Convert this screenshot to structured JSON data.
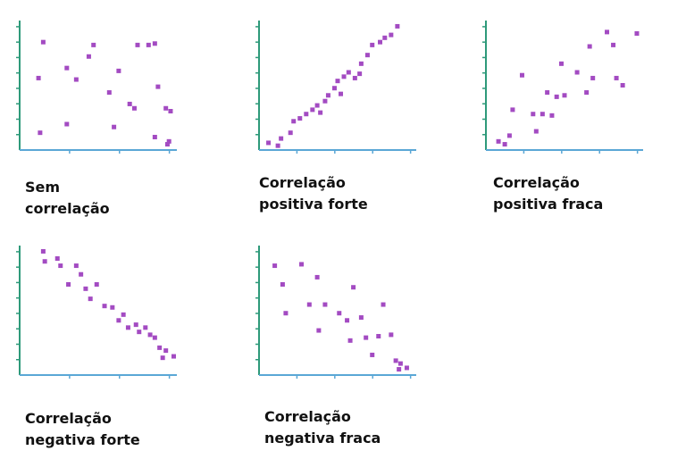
{
  "colors": {
    "y_axis": "#2e9a7a",
    "x_axis": "#5aa7d6",
    "point": "#a34bc2",
    "text": "#111111"
  },
  "chart_data": [
    {
      "type": "scatter",
      "caption": [
        "Sem",
        "correlação"
      ],
      "xlim": [
        0,
        10
      ],
      "ylim": [
        0,
        9
      ],
      "x_ticks": 3,
      "y_ticks": 8,
      "points": [
        [
          1.5,
          7.5
        ],
        [
          1.2,
          5.0
        ],
        [
          3.0,
          5.7
        ],
        [
          3.6,
          4.9
        ],
        [
          4.4,
          6.5
        ],
        [
          4.7,
          7.3
        ],
        [
          5.7,
          4.0
        ],
        [
          6.0,
          1.6
        ],
        [
          6.3,
          5.5
        ],
        [
          7.3,
          2.9
        ],
        [
          7.0,
          3.2
        ],
        [
          7.5,
          7.3
        ],
        [
          8.2,
          7.3
        ],
        [
          8.6,
          7.4
        ],
        [
          8.8,
          4.4
        ],
        [
          8.6,
          0.9
        ],
        [
          9.4,
          0.4
        ],
        [
          9.3,
          2.9
        ],
        [
          9.6,
          2.7
        ],
        [
          1.3,
          1.2
        ],
        [
          3.0,
          1.8
        ],
        [
          9.5,
          0.6
        ]
      ]
    },
    {
      "type": "scatter",
      "caption": [
        "Correlação",
        "positiva forte"
      ],
      "xlim": [
        0,
        10
      ],
      "ylim": [
        0,
        9
      ],
      "x_ticks": 4,
      "y_ticks": 8,
      "points": [
        [
          0.6,
          0.5
        ],
        [
          1.2,
          0.3
        ],
        [
          1.4,
          0.8
        ],
        [
          2.0,
          1.2
        ],
        [
          2.2,
          2.0
        ],
        [
          2.6,
          2.2
        ],
        [
          3.0,
          2.5
        ],
        [
          3.4,
          2.8
        ],
        [
          3.7,
          3.1
        ],
        [
          3.9,
          2.6
        ],
        [
          4.2,
          3.4
        ],
        [
          4.4,
          3.8
        ],
        [
          4.8,
          4.3
        ],
        [
          5.0,
          4.8
        ],
        [
          5.4,
          5.1
        ],
        [
          5.7,
          5.4
        ],
        [
          6.1,
          5.0
        ],
        [
          6.5,
          6.0
        ],
        [
          6.9,
          6.6
        ],
        [
          7.2,
          7.3
        ],
        [
          7.7,
          7.5
        ],
        [
          8.0,
          7.8
        ],
        [
          8.4,
          8.0
        ],
        [
          8.8,
          8.6
        ],
        [
          6.4,
          5.3
        ],
        [
          5.2,
          3.9
        ]
      ]
    },
    {
      "type": "scatter",
      "caption": [
        "Correlação",
        "positiva fraca"
      ],
      "xlim": [
        0,
        10
      ],
      "ylim": [
        0,
        9
      ],
      "x_ticks": 4,
      "y_ticks": 8,
      "points": [
        [
          0.8,
          0.6
        ],
        [
          1.5,
          1.0
        ],
        [
          1.7,
          2.8
        ],
        [
          2.3,
          5.2
        ],
        [
          3.0,
          2.5
        ],
        [
          3.6,
          2.5
        ],
        [
          3.9,
          4.0
        ],
        [
          4.2,
          2.4
        ],
        [
          4.5,
          3.7
        ],
        [
          4.8,
          6.0
        ],
        [
          5.0,
          3.8
        ],
        [
          5.8,
          5.4
        ],
        [
          6.4,
          4.0
        ],
        [
          6.8,
          5.0
        ],
        [
          6.6,
          7.2
        ],
        [
          7.7,
          8.2
        ],
        [
          8.1,
          7.3
        ],
        [
          8.3,
          5.0
        ],
        [
          8.7,
          4.5
        ],
        [
          9.6,
          8.1
        ],
        [
          3.2,
          1.3
        ],
        [
          1.2,
          0.4
        ]
      ]
    },
    {
      "type": "scatter",
      "caption": [
        "Correlação",
        "negativa forte"
      ],
      "xlim": [
        0,
        10
      ],
      "ylim": [
        0,
        9
      ],
      "x_ticks": 3,
      "y_ticks": 8,
      "points": [
        [
          1.5,
          8.6
        ],
        [
          1.6,
          7.9
        ],
        [
          2.4,
          8.1
        ],
        [
          2.6,
          7.6
        ],
        [
          3.1,
          6.3
        ],
        [
          3.6,
          7.6
        ],
        [
          3.9,
          7.0
        ],
        [
          4.2,
          6.0
        ],
        [
          4.5,
          5.3
        ],
        [
          4.9,
          6.3
        ],
        [
          5.4,
          4.8
        ],
        [
          5.9,
          4.7
        ],
        [
          6.3,
          3.8
        ],
        [
          6.6,
          4.2
        ],
        [
          6.9,
          3.3
        ],
        [
          7.4,
          3.5
        ],
        [
          7.6,
          3.0
        ],
        [
          8.0,
          3.3
        ],
        [
          8.3,
          2.8
        ],
        [
          8.6,
          2.6
        ],
        [
          8.9,
          1.9
        ],
        [
          9.3,
          1.7
        ],
        [
          9.8,
          1.3
        ],
        [
          9.1,
          1.2
        ]
      ]
    },
    {
      "type": "scatter",
      "caption": [
        "Correlação",
        "negativa fraca"
      ],
      "xlim": [
        0,
        10
      ],
      "ylim": [
        0,
        9
      ],
      "x_ticks": 4,
      "y_ticks": 8,
      "points": [
        [
          1.0,
          7.6
        ],
        [
          1.5,
          6.3
        ],
        [
          1.7,
          4.3
        ],
        [
          2.7,
          7.7
        ],
        [
          3.2,
          4.9
        ],
        [
          3.7,
          6.8
        ],
        [
          3.8,
          3.1
        ],
        [
          4.2,
          4.9
        ],
        [
          5.1,
          4.3
        ],
        [
          5.6,
          3.8
        ],
        [
          5.8,
          2.4
        ],
        [
          6.0,
          6.1
        ],
        [
          6.5,
          4.0
        ],
        [
          6.8,
          2.6
        ],
        [
          7.2,
          1.4
        ],
        [
          7.6,
          2.7
        ],
        [
          7.9,
          4.9
        ],
        [
          8.4,
          2.8
        ],
        [
          8.7,
          1.0
        ],
        [
          9.0,
          0.8
        ],
        [
          9.4,
          0.5
        ],
        [
          8.9,
          0.4
        ]
      ]
    }
  ]
}
